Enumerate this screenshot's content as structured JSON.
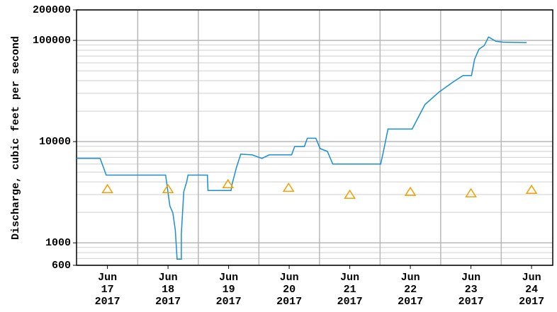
{
  "chart_data": {
    "type": "line",
    "y_label": "Discharge, cubic feet per second",
    "log_y": true,
    "ylim": [
      600,
      200000
    ],
    "yticks": [
      600,
      1000,
      10000,
      100000,
      200000
    ],
    "yminor": [
      700,
      800,
      900,
      2000,
      3000,
      4000,
      5000,
      6000,
      7000,
      8000,
      9000,
      20000,
      30000,
      40000,
      50000,
      60000,
      70000,
      80000,
      90000
    ],
    "xlim": [
      16.49,
      24.35
    ],
    "xticks": [
      {
        "value": 17,
        "label": [
          "Jun",
          "17",
          "2017"
        ]
      },
      {
        "value": 18,
        "label": [
          "Jun",
          "18",
          "2017"
        ]
      },
      {
        "value": 19,
        "label": [
          "Jun",
          "19",
          "2017"
        ]
      },
      {
        "value": 20,
        "label": [
          "Jun",
          "20",
          "2017"
        ]
      },
      {
        "value": 21,
        "label": [
          "Jun",
          "21",
          "2017"
        ]
      },
      {
        "value": 22,
        "label": [
          "Jun",
          "22",
          "2017"
        ]
      },
      {
        "value": 23,
        "label": [
          "Jun",
          "23",
          "2017"
        ]
      },
      {
        "value": 24,
        "label": [
          "Jun",
          "24",
          "2017"
        ]
      }
    ],
    "xgrid": [
      17.5,
      18.5,
      19.5,
      20.5,
      21.5,
      22.5,
      23.5
    ],
    "grid": true,
    "series": [
      {
        "type": "line",
        "color": "#1a8fd0",
        "x": [
          16.49,
          16.88,
          16.98,
          17.96,
          18.03,
          18.08,
          18.12,
          18.15,
          18.22,
          18.22,
          18.24,
          18.26,
          18.31,
          18.33,
          18.65,
          18.66,
          19.04,
          19.06,
          19.13,
          19.2,
          19.39,
          19.55,
          19.67,
          20.04,
          20.09,
          20.25,
          20.3,
          20.44,
          20.51,
          20.63,
          20.72,
          21.51,
          21.56,
          21.63,
          22.03,
          22.12,
          22.24,
          22.47,
          22.71,
          22.87,
          23.01,
          23.06,
          23.13,
          23.22,
          23.29,
          23.41,
          23.53,
          23.92
        ],
        "values": [
          6830,
          6830,
          4670,
          4670,
          2320,
          1980,
          1330,
          690,
          690,
          1230,
          1980,
          3190,
          4050,
          4670,
          4670,
          3290,
          3290,
          3850,
          5560,
          7520,
          7400,
          6830,
          7400,
          7400,
          8940,
          8940,
          10800,
          10800,
          8530,
          8000,
          6000,
          6000,
          8260,
          13300,
          13300,
          16900,
          23200,
          30800,
          39000,
          45000,
          45000,
          65000,
          81500,
          89000,
          108000,
          98000,
          96000,
          95000
        ]
      },
      {
        "type": "scatter",
        "color": "#f0a000",
        "x": [
          17,
          18,
          18.99,
          19.99,
          21,
          22,
          23,
          24
        ],
        "values": [
          3400,
          3400,
          3800,
          3500,
          2990,
          3190,
          3090,
          3340
        ]
      }
    ]
  }
}
